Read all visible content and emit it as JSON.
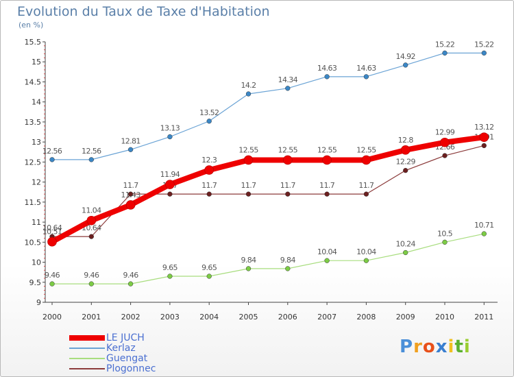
{
  "chart_data": {
    "type": "line",
    "title": "Evolution du Taux de Taxe d'Habitation",
    "subtitle": "(en %)",
    "categories": [
      "2000",
      "2001",
      "2002",
      "2003",
      "2004",
      "2005",
      "2006",
      "2007",
      "2008",
      "2009",
      "2010",
      "2011"
    ],
    "ylim": [
      9,
      15.5
    ],
    "yticks": [
      "9",
      "9.5",
      "10",
      "10.5",
      "11",
      "11.5",
      "12",
      "12.5",
      "13",
      "13.5",
      "14",
      "14.5",
      "15",
      "15.5"
    ],
    "grid": false,
    "legend_position": "bottom-left",
    "series": [
      {
        "name": "Kerlaz",
        "color": "#6aa3d5",
        "marker_color": "#3b87c6",
        "values": [
          12.56,
          12.56,
          12.81,
          13.13,
          13.52,
          14.2,
          14.34,
          14.63,
          14.63,
          14.92,
          15.22,
          15.22
        ],
        "labels": [
          "12.56",
          "12.56",
          "12.81",
          "13.13",
          "13.52",
          "14.2",
          "14.34",
          "14.63",
          "14.63",
          "14.92",
          "15.22",
          "15.22"
        ]
      },
      {
        "name": "Guengat",
        "color": "#a8dd7e",
        "marker_color": "#7ccc45",
        "values": [
          9.46,
          9.46,
          9.46,
          9.65,
          9.65,
          9.84,
          9.84,
          10.04,
          10.04,
          10.24,
          10.5,
          10.71
        ],
        "labels": [
          "9.46",
          "9.46",
          "9.46",
          "9.65",
          "9.65",
          "9.84",
          "9.84",
          "10.04",
          "10.04",
          "10.24",
          "10.5",
          "10.71"
        ]
      },
      {
        "name": "Plogonnec",
        "color": "#8b3a3a",
        "marker_color": "#6b1f1f",
        "values": [
          10.64,
          10.64,
          11.7,
          11.7,
          11.7,
          11.7,
          11.7,
          11.7,
          11.7,
          12.29,
          12.66,
          12.91
        ],
        "labels": [
          "10.64",
          "10.64",
          "11.7",
          "11.7",
          "11.7",
          "11.7",
          "11.7",
          "11.7",
          "11.7",
          "12.29",
          "12.66",
          "12.91"
        ]
      },
      {
        "name": "LE JUCH",
        "color": "#ee0000",
        "marker_color": "#ee0000",
        "values": [
          10.51,
          11.04,
          11.43,
          11.94,
          12.3,
          12.55,
          12.55,
          12.55,
          12.55,
          12.8,
          12.99,
          13.12
        ],
        "labels": [
          "10.51",
          "11.04",
          "11.43",
          "11.94",
          "12.3",
          "12.55",
          "12.55",
          "12.55",
          "12.55",
          "12.8",
          "12.99",
          "13.12"
        ]
      }
    ],
    "legend": [
      {
        "name": "LE JUCH",
        "color": "#ee0000"
      },
      {
        "name": "Kerlaz",
        "color": "#6aa3d5"
      },
      {
        "name": "Guengat",
        "color": "#a8dd7e"
      },
      {
        "name": "Plogonnec",
        "color": "#8b3a3a"
      }
    ]
  },
  "logo": {
    "letters": [
      "P",
      "r",
      "o",
      "x",
      "i",
      "t",
      "i"
    ],
    "colors": [
      "#4a8fd8",
      "#f0a020",
      "#e8501a",
      "#3a7fd0",
      "#f0c020",
      "#5ab030",
      "#9acd32"
    ]
  }
}
